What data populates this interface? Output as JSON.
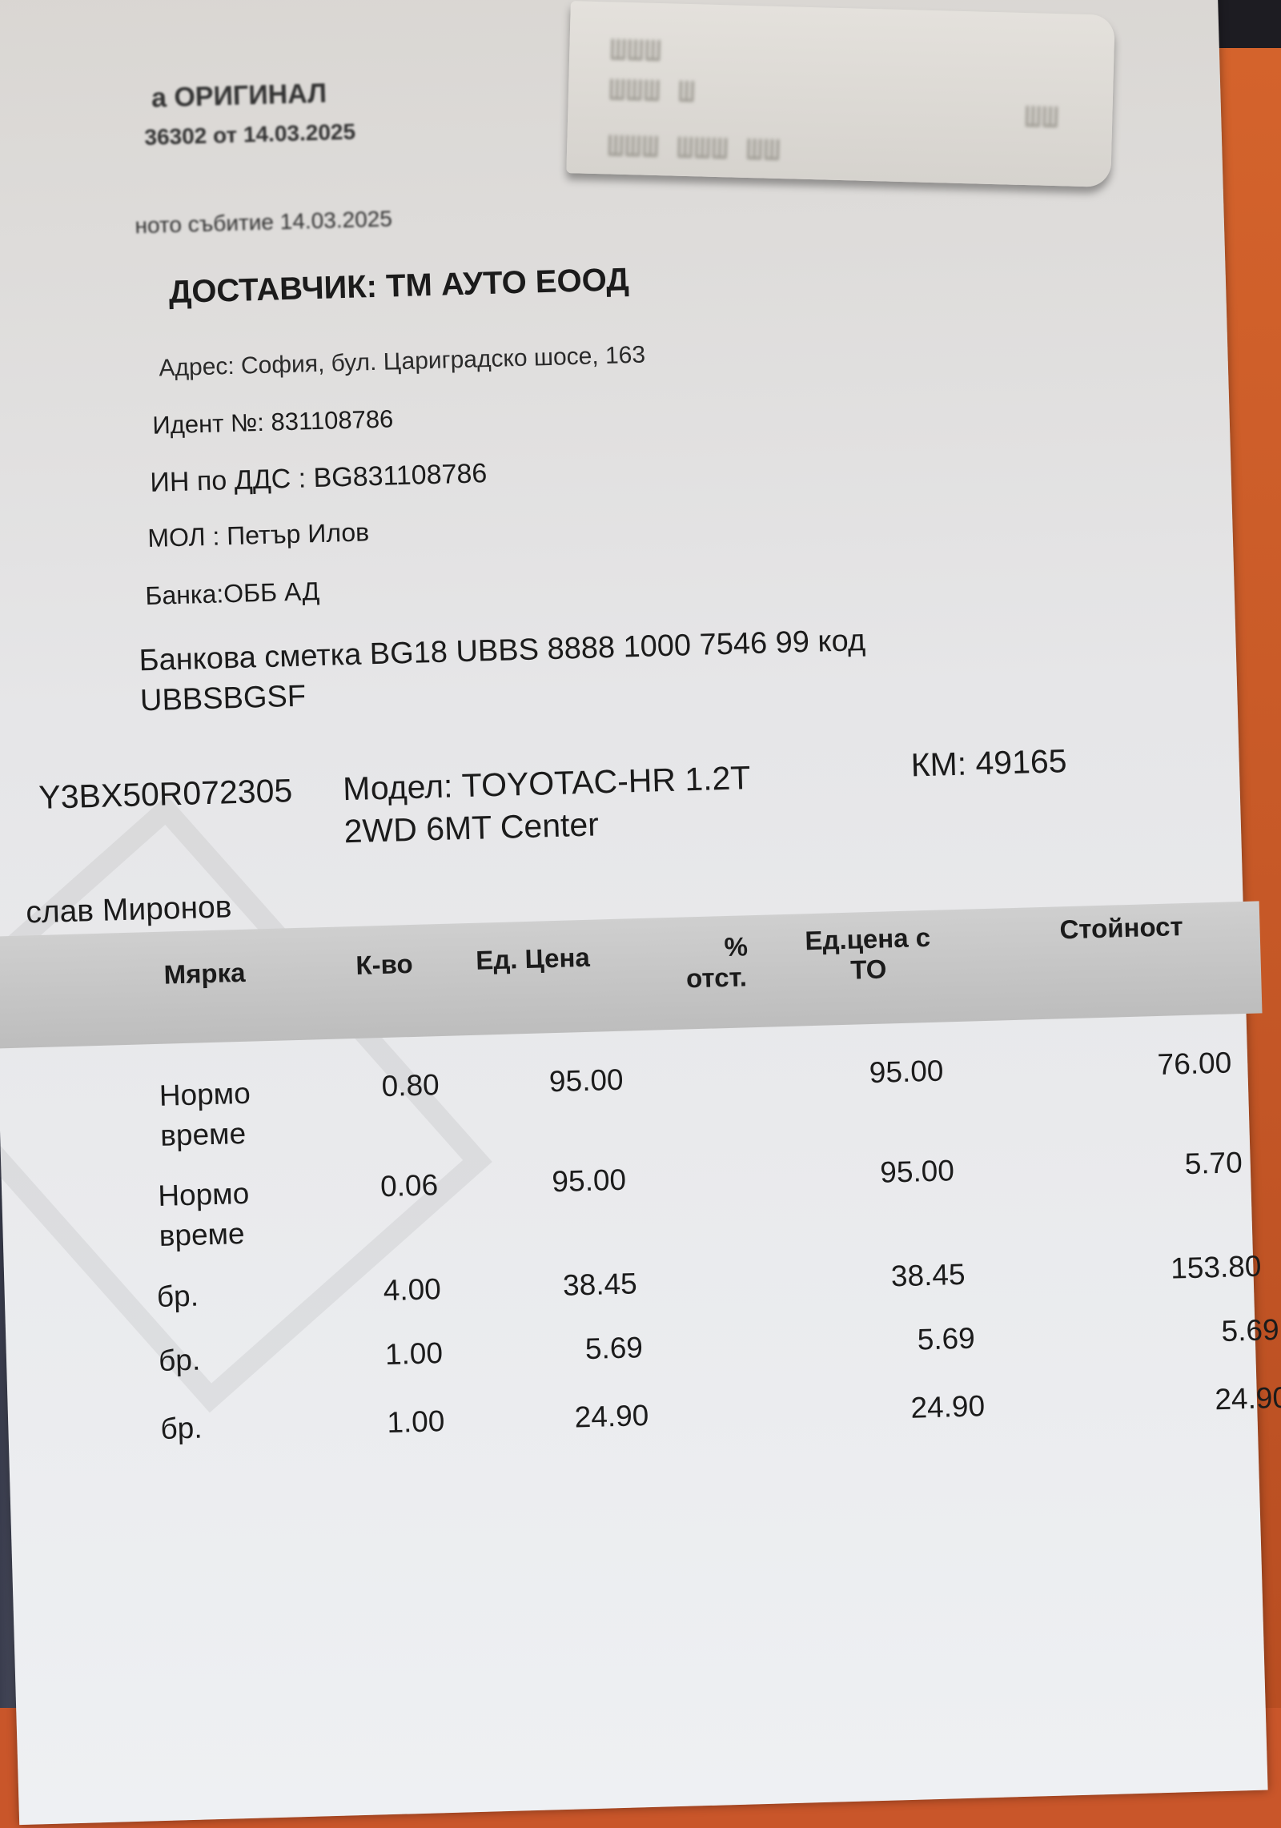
{
  "invoice": {
    "original_label": "а ОРИГИНАЛ",
    "number_date": "36302 от 14.03.2025",
    "event_date": "ното събитие 14.03.2025"
  },
  "supplier": {
    "title": "ДОСТАВЧИК: ТМ АУТО ЕООД",
    "address": "Адрес: София, бул. Цариградско шосе, 163",
    "ident": "Идент №: 831108786",
    "vat": "ИН по ДДС  : BG831108786",
    "mol": "МОЛ : Петър Илов",
    "bank": "Банка:ОББ АД",
    "account_line1": "Банкова сметка BG18 UBBS 8888 1000 7546 99 код",
    "account_line2": "UBBSBGSF"
  },
  "vehicle": {
    "vin": "Y3BX50R072305",
    "model_line1": "Модел: TOYOTAC-HR 1.2T",
    "model_line2": "2WD 6MT Center",
    "km": "КМ: 49165",
    "customer": "слав Миронов"
  },
  "table": {
    "headers": {
      "unit": "Мярка",
      "qty": "К-во",
      "price": "Ед. Цена",
      "discount_line1": "%",
      "discount_line2": "отст.",
      "price_to_line1": "Ед.цена с",
      "price_to_line2": "ТО",
      "value": "Стойност"
    },
    "rows": [
      {
        "unit": "Нормо време",
        "qty": "0.80",
        "price": "95.00",
        "discount": "",
        "price_to": "95.00",
        "value": "76.00"
      },
      {
        "unit": "Нормо време",
        "qty": "0.06",
        "price": "95.00",
        "discount": "",
        "price_to": "95.00",
        "value": "5.70"
      },
      {
        "unit": "бр.",
        "qty": "4.00",
        "price": "38.45",
        "discount": "",
        "price_to": "38.45",
        "value": "153.80"
      },
      {
        "unit": "бр.",
        "qty": "1.00",
        "price": "5.69",
        "discount": "",
        "price_to": "5.69",
        "value": "5.69"
      },
      {
        "unit": "бр.",
        "qty": "1.00",
        "price": "24.90",
        "discount": "",
        "price_to": "24.90",
        "value": "24.90"
      }
    ]
  },
  "colors": {
    "paper": "#e6e6e8",
    "header_band": "#c6c6c6",
    "background": "#c9562a"
  }
}
